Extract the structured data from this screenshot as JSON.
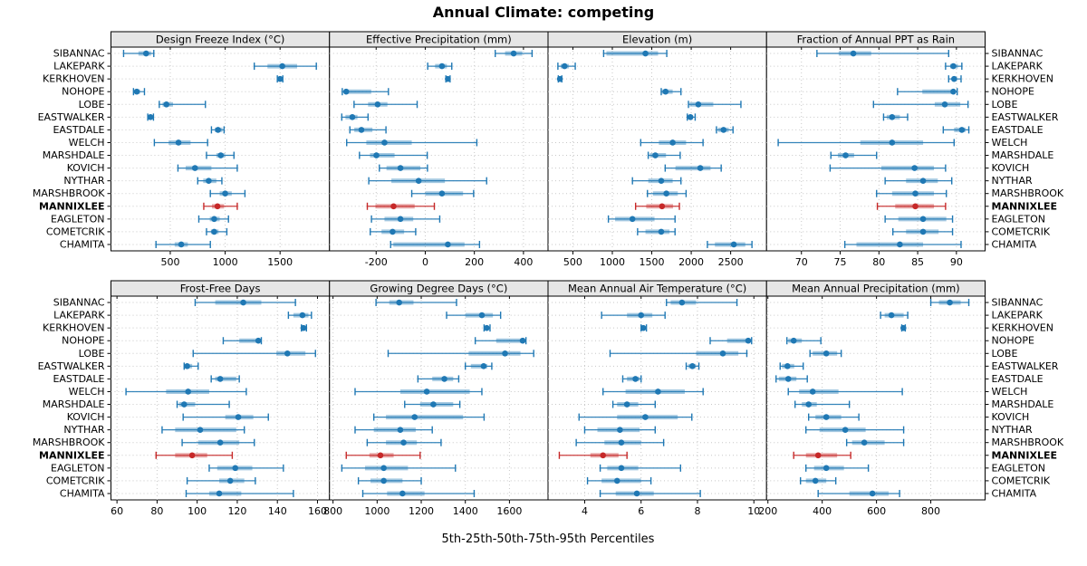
{
  "title": "Annual Climate: competing",
  "xlabel": "5th-25th-50th-75th-95th Percentiles",
  "highlight_site": "MANNIXLEE",
  "colors": {
    "series": "#1F78B4",
    "highlight": "#C62828",
    "strip_bg": "#E6E6E6",
    "panel_border": "#000000",
    "grid": "#C8C8C8",
    "background": "#FFFFFF"
  },
  "sites": [
    "SIBANNAC",
    "LAKEPARK",
    "KERKHOVEN",
    "NOHOPE",
    "LOBE",
    "EASTWALKER",
    "EASTDALE",
    "WELCH",
    "MARSHDALE",
    "KOVICH",
    "NYTHAR",
    "MARSHBROOK",
    "MANNIXLEE",
    "EAGLETON",
    "COMETCRIK",
    "CHAMITA"
  ],
  "chart_data": {
    "type": "percentile_dotplot",
    "layout": "2 rows x 4 columns trellis, site labels left and right, dotted grid",
    "percentiles": [
      5,
      25,
      50,
      75,
      95
    ],
    "panels": [
      {
        "title": "Design Freeze Index (°C)",
        "xlim": [
          -40,
          1950
        ],
        "ticks": [
          500,
          1000,
          1500
        ],
        "values": [
          [
            75,
            210,
            280,
            325,
            350
          ],
          [
            1265,
            1385,
            1520,
            1655,
            1830
          ],
          [
            1475,
            1490,
            1500,
            1510,
            1525
          ],
          [
            165,
            175,
            195,
            225,
            265
          ],
          [
            400,
            430,
            465,
            525,
            820
          ],
          [
            295,
            308,
            320,
            333,
            347
          ],
          [
            875,
            905,
            935,
            975,
            990
          ],
          [
            355,
            485,
            575,
            685,
            840
          ],
          [
            830,
            920,
            960,
            1000,
            1080
          ],
          [
            570,
            640,
            725,
            875,
            1110
          ],
          [
            750,
            800,
            850,
            920,
            970
          ],
          [
            865,
            950,
            1000,
            1060,
            1180
          ],
          [
            805,
            880,
            930,
            990,
            1110
          ],
          [
            760,
            860,
            900,
            950,
            1030
          ],
          [
            830,
            870,
            900,
            940,
            1015
          ],
          [
            370,
            540,
            600,
            660,
            865
          ]
        ]
      },
      {
        "title": "Effective Precipitation (mm)",
        "xlim": [
          -390,
          500
        ],
        "ticks": [
          -200,
          0,
          200,
          400
        ],
        "values": [
          [
            285,
            325,
            360,
            395,
            435
          ],
          [
            10,
            40,
            68,
            88,
            108
          ],
          [
            84,
            88,
            92,
            97,
            101
          ],
          [
            -338,
            -328,
            -322,
            -220,
            -150
          ],
          [
            -290,
            -233,
            -194,
            -154,
            -33
          ],
          [
            -340,
            -325,
            -297,
            -276,
            -233
          ],
          [
            -307,
            -289,
            -260,
            -215,
            -160
          ],
          [
            -320,
            -240,
            -166,
            -55,
            210
          ],
          [
            -268,
            -225,
            -199,
            -125,
            8
          ],
          [
            -187,
            -158,
            -101,
            -20,
            9
          ],
          [
            -230,
            -138,
            -27,
            80,
            250
          ],
          [
            -55,
            0,
            68,
            154,
            197
          ],
          [
            -236,
            -203,
            -129,
            -43,
            37
          ],
          [
            -219,
            -166,
            -101,
            -49,
            59
          ],
          [
            -224,
            -178,
            -133,
            -86,
            -39
          ],
          [
            -141,
            -130,
            92,
            160,
            221
          ]
        ]
      },
      {
        "title": "Elevation (m)",
        "xlim": [
          185,
          2955
        ],
        "ticks": [
          500,
          1000,
          1500,
          2000,
          2500
        ],
        "values": [
          [
            890,
            925,
            1420,
            1580,
            1690
          ],
          [
            310,
            345,
            395,
            450,
            530
          ],
          [
            315,
            325,
            335,
            345,
            360
          ],
          [
            1620,
            1630,
            1675,
            1765,
            1870
          ],
          [
            1965,
            1980,
            2090,
            2280,
            2630
          ],
          [
            1950,
            1965,
            1990,
            2020,
            2050
          ],
          [
            2320,
            2340,
            2410,
            2475,
            2530
          ],
          [
            1360,
            1590,
            1765,
            1935,
            2150
          ],
          [
            1455,
            1475,
            1545,
            1680,
            1860
          ],
          [
            1670,
            1800,
            2115,
            2245,
            2380
          ],
          [
            1255,
            1455,
            1620,
            1765,
            1870
          ],
          [
            1445,
            1515,
            1685,
            1830,
            1935
          ],
          [
            1295,
            1430,
            1630,
            1770,
            1850
          ],
          [
            950,
            1035,
            1255,
            1535,
            1795
          ],
          [
            1320,
            1420,
            1620,
            1725,
            1795
          ],
          [
            2205,
            2300,
            2540,
            2685,
            2770
          ]
        ]
      },
      {
        "title": "Fraction of Annual PPT as Rain",
        "xlim": [
          65.5,
          93.7
        ],
        "ticks": [
          70,
          75,
          80,
          85,
          90
        ],
        "values": [
          [
            72,
            74.8,
            76.7,
            79,
            89
          ],
          [
            88.6,
            89.2,
            89.6,
            90.2,
            90.7
          ],
          [
            89,
            89.4,
            89.7,
            90.1,
            90.6
          ],
          [
            82.4,
            85.6,
            89.6,
            89.8,
            90.1
          ],
          [
            79.3,
            87.2,
            88.5,
            90.5,
            91.5
          ],
          [
            80.6,
            81,
            81.7,
            82.7,
            83.7
          ],
          [
            88.3,
            89.7,
            90.7,
            91.2,
            91.6
          ],
          [
            67,
            77.6,
            81.7,
            85.7,
            89.7
          ],
          [
            73.8,
            74.7,
            75.7,
            76.8,
            79.7
          ],
          [
            73.7,
            80.3,
            84.6,
            87.1,
            88.6
          ],
          [
            80.8,
            83.5,
            85.7,
            87.6,
            89.4
          ],
          [
            79.7,
            81.7,
            84.7,
            87.1,
            88.7
          ],
          [
            79.8,
            82.1,
            84.7,
            87.1,
            88.6
          ],
          [
            80.8,
            82.5,
            85.7,
            88.7,
            89.5
          ],
          [
            81.8,
            83.5,
            85.7,
            87.7,
            89.5
          ],
          [
            75.6,
            77.1,
            82.7,
            85.7,
            90.6
          ]
        ]
      },
      {
        "title": "Frost-Free Days",
        "xlim": [
          57,
          166
        ],
        "ticks": [
          60,
          80,
          100,
          120,
          140,
          160
        ],
        "values": [
          [
            99,
            109,
            123,
            132,
            149
          ],
          [
            145.5,
            148,
            152.5,
            155.5,
            157
          ],
          [
            152,
            152.5,
            153,
            154,
            154.5
          ],
          [
            113,
            121,
            130.5,
            131,
            132
          ],
          [
            98,
            139.5,
            145,
            154,
            159
          ],
          [
            93.5,
            94,
            95,
            97.5,
            100.5
          ],
          [
            107,
            109,
            111.5,
            119.5,
            121
          ],
          [
            64.5,
            84.5,
            95.5,
            106,
            124.5
          ],
          [
            90,
            91,
            93.5,
            99,
            116
          ],
          [
            93,
            114,
            120.5,
            128,
            135.5
          ],
          [
            82.5,
            89,
            101.5,
            119.5,
            123.5
          ],
          [
            92.5,
            100.5,
            111.5,
            121,
            128.5
          ],
          [
            79.5,
            89,
            97.5,
            105,
            117.5
          ],
          [
            106,
            110,
            119,
            127.5,
            143
          ],
          [
            95,
            111,
            116.5,
            123.5,
            129
          ],
          [
            94.5,
            106,
            111,
            122,
            148
          ]
        ]
      },
      {
        "title": "Growing Degree Days (°C)",
        "xlim": [
          784,
          1775
        ],
        "ticks": [
          800,
          1000,
          1200,
          1400,
          1600
        ],
        "values": [
          [
            995,
            1055,
            1100,
            1165,
            1360
          ],
          [
            1315,
            1400,
            1475,
            1525,
            1560
          ],
          [
            1485,
            1490,
            1497,
            1505,
            1512
          ],
          [
            1445,
            1540,
            1660,
            1668,
            1675
          ],
          [
            1050,
            1415,
            1580,
            1650,
            1710
          ],
          [
            1400,
            1425,
            1483,
            1500,
            1520
          ],
          [
            1185,
            1250,
            1305,
            1345,
            1370
          ],
          [
            900,
            1105,
            1225,
            1420,
            1475
          ],
          [
            1125,
            1195,
            1255,
            1345,
            1375
          ],
          [
            985,
            1040,
            1170,
            1390,
            1485
          ],
          [
            900,
            985,
            1105,
            1175,
            1250
          ],
          [
            955,
            1040,
            1120,
            1180,
            1290
          ],
          [
            860,
            965,
            1015,
            1075,
            1195
          ],
          [
            840,
            945,
            1030,
            1140,
            1355
          ],
          [
            915,
            970,
            1030,
            1115,
            1200
          ],
          [
            935,
            1045,
            1115,
            1215,
            1440
          ]
        ]
      },
      {
        "title": "Mean Annual Air Temperature (°C)",
        "xlim": [
          2.7,
          10.45
        ],
        "ticks": [
          4,
          6,
          8,
          10
        ],
        "values": [
          [
            6.9,
            7.05,
            7.45,
            7.95,
            9.4
          ],
          [
            4.6,
            5.5,
            6,
            6.4,
            6.85
          ],
          [
            6,
            6.04,
            6.08,
            6.14,
            6.19
          ],
          [
            8.45,
            9.05,
            9.8,
            9.87,
            9.92
          ],
          [
            4.9,
            7.95,
            8.9,
            9.45,
            9.75
          ],
          [
            7.6,
            7.67,
            7.82,
            7.95,
            8.05
          ],
          [
            5.35,
            5.5,
            5.8,
            5.95,
            6
          ],
          [
            4.65,
            5.45,
            6.6,
            7.55,
            8.2
          ],
          [
            5,
            5.15,
            5.5,
            5.9,
            6.5
          ],
          [
            3.8,
            5.15,
            6.15,
            7.3,
            7.8
          ],
          [
            4,
            4.45,
            5.25,
            5.95,
            6.5
          ],
          [
            3.7,
            4.7,
            5.3,
            6,
            6.8
          ],
          [
            3.1,
            4.2,
            4.65,
            5.2,
            5.5
          ],
          [
            4.55,
            4.8,
            5.3,
            5.9,
            7.4
          ],
          [
            4.1,
            4.6,
            5.15,
            6,
            6.35
          ],
          [
            4.55,
            5.1,
            5.85,
            6.45,
            8.1
          ]
        ]
      },
      {
        "title": "Mean Annual Precipitation (mm)",
        "xlim": [
          195,
          1000
        ],
        "ticks": [
          200,
          400,
          600,
          800
        ],
        "values": [
          [
            800,
            830,
            870,
            910,
            940
          ],
          [
            615,
            630,
            655,
            700,
            715
          ],
          [
            693,
            696,
            699,
            703,
            706
          ],
          [
            270,
            275,
            295,
            325,
            395
          ],
          [
            355,
            365,
            415,
            455,
            470
          ],
          [
            245,
            252,
            272,
            297,
            330
          ],
          [
            230,
            240,
            275,
            305,
            345
          ],
          [
            275,
            315,
            365,
            460,
            695
          ],
          [
            300,
            325,
            350,
            380,
            500
          ],
          [
            350,
            375,
            415,
            470,
            535
          ],
          [
            340,
            390,
            485,
            560,
            700
          ],
          [
            490,
            510,
            555,
            630,
            700
          ],
          [
            295,
            340,
            385,
            455,
            505
          ],
          [
            340,
            370,
            415,
            480,
            570
          ],
          [
            320,
            340,
            375,
            415,
            450
          ],
          [
            385,
            500,
            585,
            645,
            685
          ]
        ]
      }
    ]
  }
}
